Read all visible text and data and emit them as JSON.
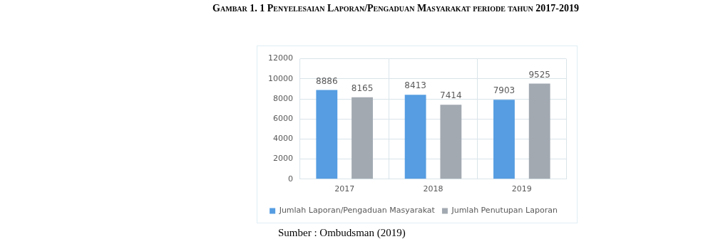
{
  "chart_data": {
    "type": "bar",
    "title": "Gambar 1. 1  Penyelesaian Laporan/Pengaduan Masyarakat periode tahun 2017-2019",
    "categories": [
      "2017",
      "2018",
      "2019"
    ],
    "series": [
      {
        "name": "Jumlah Laporan/Pengaduan Masyarakat",
        "color": "#569de2",
        "values": [
          8886,
          8413,
          7903
        ]
      },
      {
        "name": "Jumlah Penutupan Laporan",
        "color": "#a2a9b1",
        "values": [
          8165,
          7414,
          9525
        ]
      }
    ],
    "ylim": [
      0,
      12000
    ],
    "yticks": [
      0,
      2000,
      4000,
      6000,
      8000,
      10000,
      12000
    ],
    "grid": true,
    "legend": "bottom",
    "data_labels": true,
    "annotations": [
      "Sumber : Ombudsman (2019)"
    ]
  }
}
